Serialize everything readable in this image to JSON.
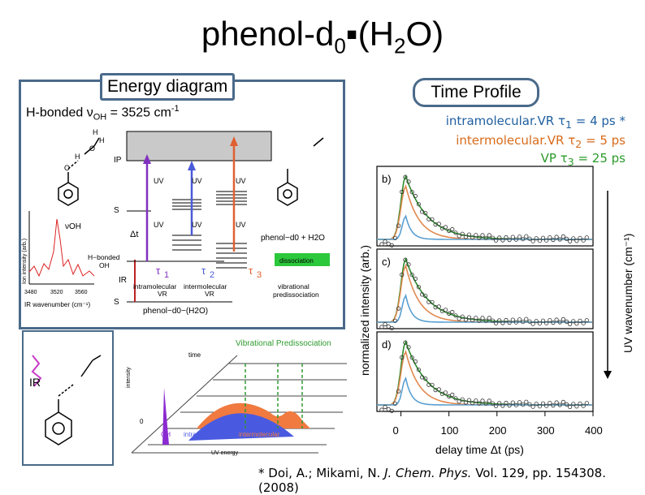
{
  "title": {
    "main": "phenol-d",
    "sub0": "0",
    "mid": "▪(H",
    "sub2": "2",
    "end": "O)"
  },
  "energy_diagram": {
    "label": "Energy diagram",
    "hbond_prefix": "H-bonded ν",
    "hbond_sub": "OH",
    "hbond_value": " = 3525 cm",
    "hbond_sup": "-1",
    "levels": {
      "ip": "IP",
      "s1": "S",
      "s0": "S",
      "ir": "IR"
    },
    "uv_labels": [
      "UV",
      "UV",
      "UV",
      "UV",
      "UV",
      "UV"
    ],
    "delta_t": "Δt",
    "taus": [
      "τ",
      "τ",
      "τ"
    ],
    "tau_subs": [
      "1",
      "2",
      "3"
    ],
    "step_labels": {
      "intra": "intramolecular",
      "inter": "intermolecular",
      "vr1": "VR",
      "vr2": "VR",
      "vib": "vibrational",
      "predis": "predissociation"
    },
    "bottom_label": "phenol−d0−(H2O)",
    "right_label": "phenol−d0 + H2O",
    "dissociation": "dissociation",
    "hbonded_oh": "H−bonded",
    "oh": "OH",
    "nu_oh": "νOH",
    "inset_ylabel": "Ion intensity (arb.)",
    "inset_xlabel": "IR wavenumber (cm⁻¹)",
    "inset_ticks": [
      "3480",
      "3520",
      "3560"
    ]
  },
  "lower_left": {
    "ir": "IR"
  },
  "lower_center": {
    "title": "Vibrational Predissociation",
    "time": "time",
    "intensity": "intensity",
    "oh": "OH",
    "intra": "intramolecular",
    "inter": "intermolecular",
    "uv_energy": "UV energy",
    "zero": "0"
  },
  "time_profile": {
    "label": "Time Profile",
    "line1": "intramolecular.VR τ",
    "line1_sub": "1",
    "line1_val": " = 4 ps *",
    "line2": "intermolecular.VR τ",
    "line2_sub": "2",
    "line2_val": " = 5 ps",
    "line3": "VP τ",
    "line3_sub": "3",
    "line3_val": " = 25 ps",
    "colors": {
      "line1": "#1f5fa0",
      "line2": "#d96a1a",
      "line3": "#2a9a2a"
    }
  },
  "chart_data": {
    "type": "line",
    "xlabel": "delay time Δt (ps)",
    "ylabel": "normalized intensity (arb.)",
    "right_label": "UV wavenumber (cm⁻¹)",
    "x_ticks": [
      0,
      100,
      200,
      300,
      400
    ],
    "xlim": [
      -50,
      400
    ],
    "panels": [
      "b)",
      "c)",
      "d)"
    ],
    "series_colors": {
      "green": "#2e8b2e",
      "orange": "#e08a50",
      "blue": "#5a9fd0"
    }
  },
  "footnote": {
    "pre": "* Doi, A.; Mikami, N. ",
    "journal": "J. Chem. Phys.",
    "post": " Vol. 129, pp. 154308. (2008)"
  }
}
